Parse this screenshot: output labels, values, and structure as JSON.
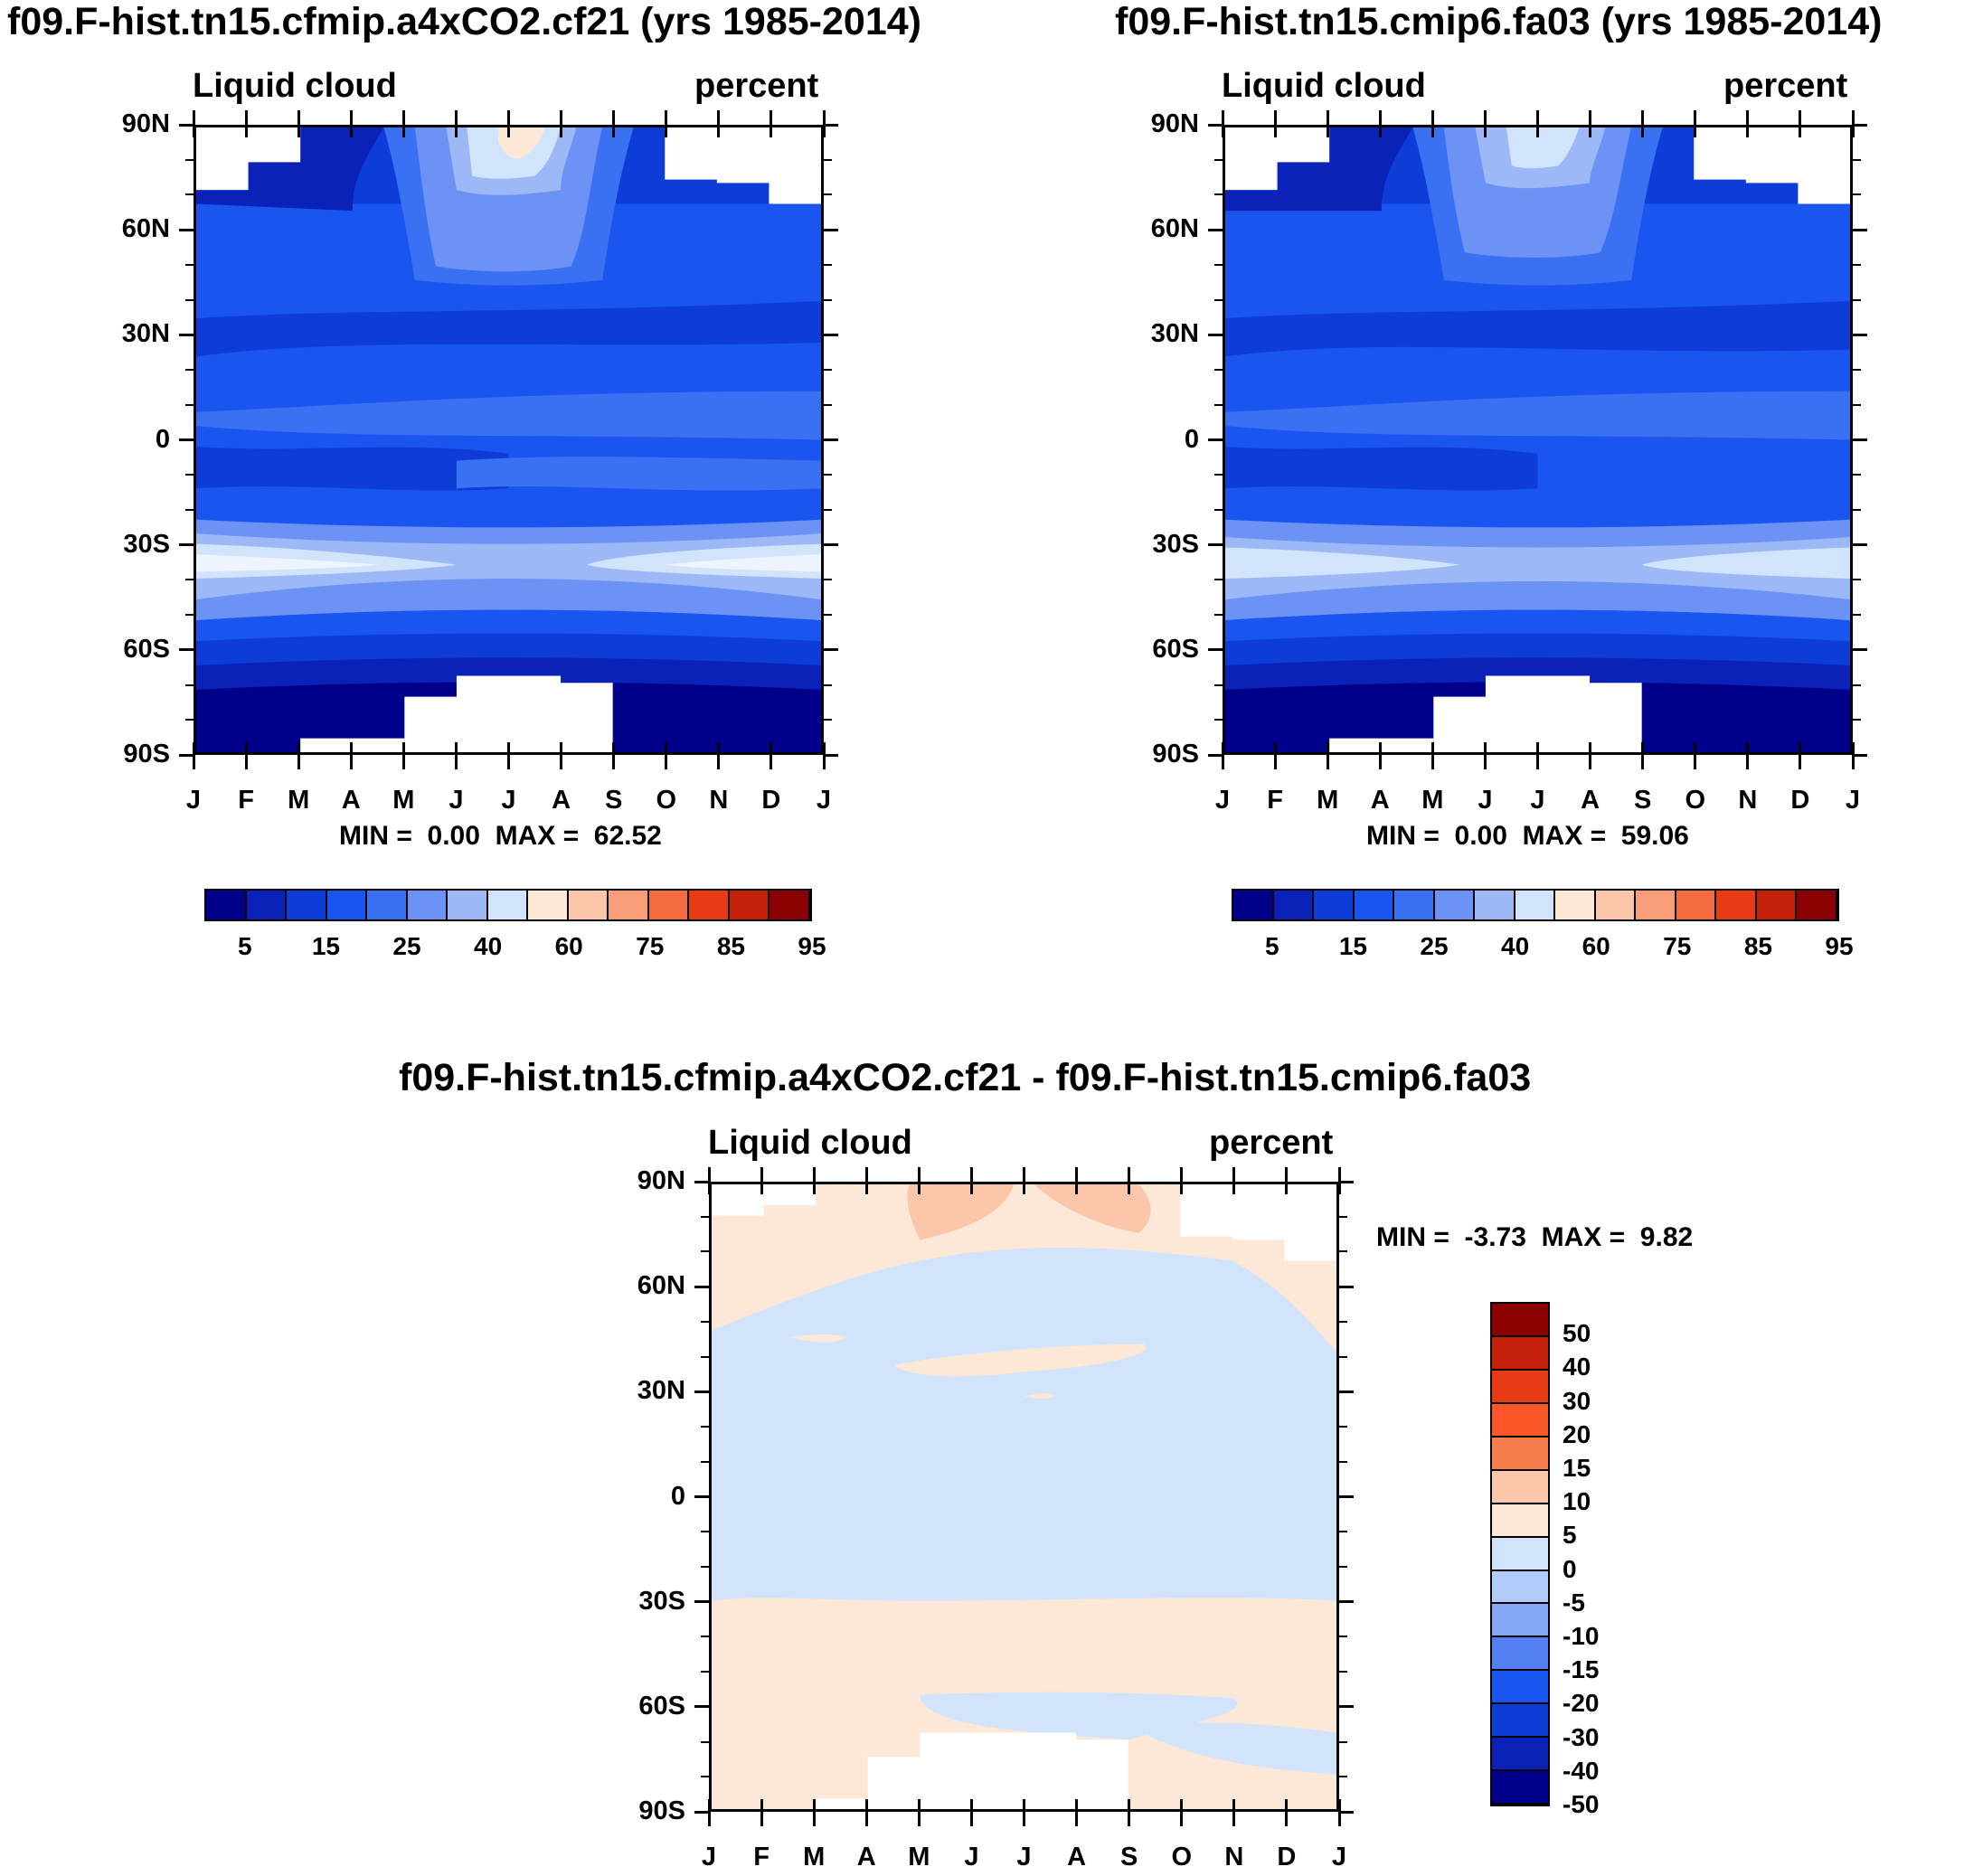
{
  "chart_data": [
    {
      "type": "heatmap",
      "title": "f09.F-hist.tn15.cfmip.a4xCO2.cf21 (yrs 1985-2014)",
      "left_label": "Liquid cloud",
      "right_label": "percent",
      "x_ticks": [
        "J",
        "F",
        "M",
        "A",
        "M",
        "J",
        "J",
        "A",
        "S",
        "O",
        "N",
        "D",
        "J"
      ],
      "y_ticks": [
        "90N",
        "60N",
        "30N",
        "0",
        "30S",
        "60S",
        "90S"
      ],
      "ylim": [
        -90,
        90
      ],
      "min_label": "MIN =",
      "min_value": "0.00",
      "max_label": "MAX =",
      "max_value": "62.52",
      "colorbar_labels": [
        "5",
        "15",
        "25",
        "40",
        "60",
        "75",
        "85",
        "95"
      ]
    },
    {
      "type": "heatmap",
      "title": "f09.F-hist.tn15.cmip6.fa03 (yrs 1985-2014)",
      "left_label": "Liquid cloud",
      "right_label": "percent",
      "x_ticks": [
        "J",
        "F",
        "M",
        "A",
        "M",
        "J",
        "J",
        "A",
        "S",
        "O",
        "N",
        "D",
        "J"
      ],
      "y_ticks": [
        "90N",
        "60N",
        "30N",
        "0",
        "30S",
        "60S",
        "90S"
      ],
      "ylim": [
        -90,
        90
      ],
      "min_label": "MIN =",
      "min_value": "0.00",
      "max_label": "MAX =",
      "max_value": "59.06",
      "colorbar_labels": [
        "5",
        "15",
        "25",
        "40",
        "60",
        "75",
        "85",
        "95"
      ]
    },
    {
      "type": "heatmap",
      "title": "f09.F-hist.tn15.cfmip.a4xCO2.cf21 - f09.F-hist.tn15.cmip6.fa03",
      "left_label": "Liquid cloud",
      "right_label": "percent",
      "x_ticks": [
        "J",
        "F",
        "M",
        "A",
        "M",
        "J",
        "J",
        "A",
        "S",
        "O",
        "N",
        "D",
        "J"
      ],
      "y_ticks": [
        "90N",
        "60N",
        "30N",
        "0",
        "30S",
        "60S",
        "90S"
      ],
      "ylim": [
        -90,
        90
      ],
      "min_label": "MIN =",
      "min_value": "-3.73",
      "max_label": "MAX =",
      "max_value": "9.82",
      "colorbar_labels": [
        "50",
        "40",
        "30",
        "20",
        "15",
        "10",
        "5",
        "0",
        "-5",
        "-10",
        "-15",
        "-20",
        "-30",
        "-40",
        "-50"
      ]
    }
  ],
  "colors": {
    "seq": [
      "#00008b",
      "#0a22b8",
      "#0d3dd6",
      "#1a55f0",
      "#3a70f2",
      "#6b92f4",
      "#9db8f7",
      "#d2e4fb",
      "#fde7d6",
      "#fbc6aa",
      "#f79d77",
      "#f36b3e",
      "#e63b14",
      "#c4200a",
      "#8b0000"
    ],
    "diff": [
      "#8b0000",
      "#c4200a",
      "#e63b14",
      "#fb5728",
      "#f77d4a",
      "#fbc6aa",
      "#fde7d6",
      "#d2e4fb",
      "#b1ccf8",
      "#86a7f6",
      "#5280f3",
      "#1a55f0",
      "#0d3dd6",
      "#0a22b8",
      "#00008b"
    ]
  }
}
